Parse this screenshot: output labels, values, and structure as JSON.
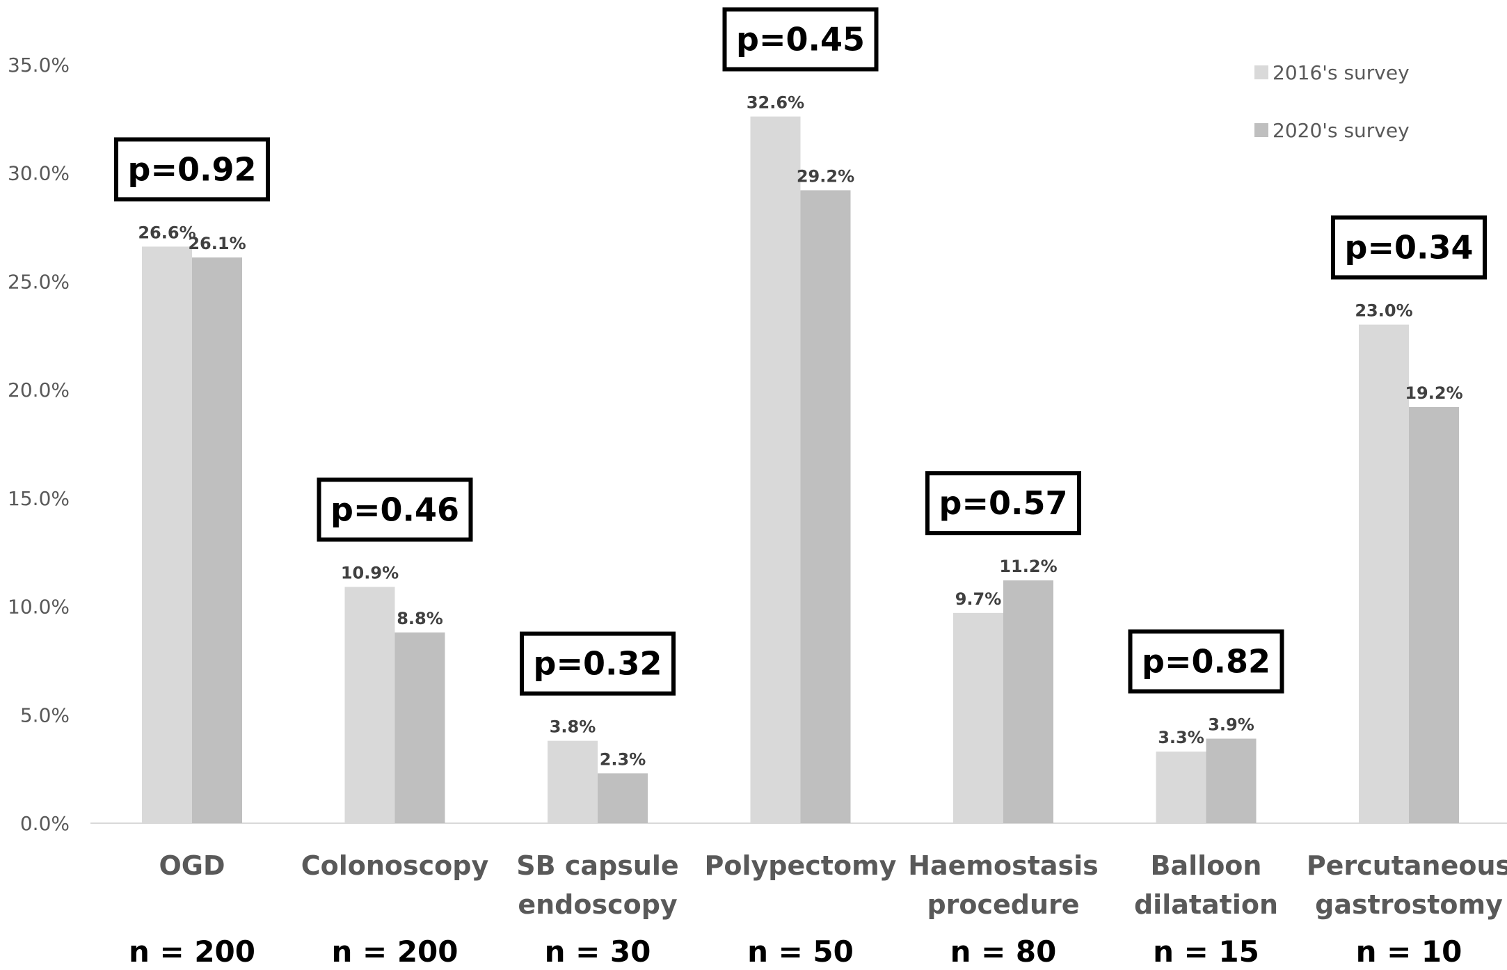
{
  "chart_data": {
    "type": "bar",
    "categories": [
      [
        "OGD"
      ],
      [
        "Colonoscopy"
      ],
      [
        "SB capsule",
        "endoscopy"
      ],
      [
        "Polypectomy"
      ],
      [
        "Haemostasis",
        "procedure"
      ],
      [
        "Balloon",
        "dilatation"
      ],
      [
        "Percutaneous",
        "gastrostomy"
      ]
    ],
    "series": [
      {
        "name": "2016's survey",
        "color": "#d9d9d9",
        "values": [
          26.6,
          10.9,
          3.8,
          32.6,
          9.7,
          3.3,
          23.0
        ],
        "labels": [
          "26.6%",
          "10.9%",
          "3.8%",
          "32.6%",
          "9.7%",
          "3.3%",
          "23.0%"
        ]
      },
      {
        "name": "2020's survey",
        "color": "#bfbfbf",
        "values": [
          26.1,
          8.8,
          2.3,
          29.2,
          11.2,
          3.9,
          19.2
        ],
        "labels": [
          "26.1%",
          "8.8%",
          "2.3%",
          "29.2%",
          "11.2%",
          "3.9%",
          "19.2%"
        ]
      }
    ],
    "p_values": [
      "p=0.92",
      "p=0.46",
      "p=0.32",
      "p=0.45",
      "p=0.57",
      "p=0.82",
      "p=0.34"
    ],
    "n_labels": [
      "n = 200",
      "n = 200",
      "n = 30",
      "n = 50",
      "n = 80",
      "n = 15",
      "n = 10"
    ],
    "y_ticks": [
      "0.0%",
      "5.0%",
      "10.0%",
      "15.0%",
      "20.0%",
      "25.0%",
      "30.0%",
      "35.0%"
    ],
    "ylim": [
      0,
      35
    ],
    "grid": false,
    "legend_position": "top-right",
    "xlabel": "",
    "ylabel": ""
  }
}
